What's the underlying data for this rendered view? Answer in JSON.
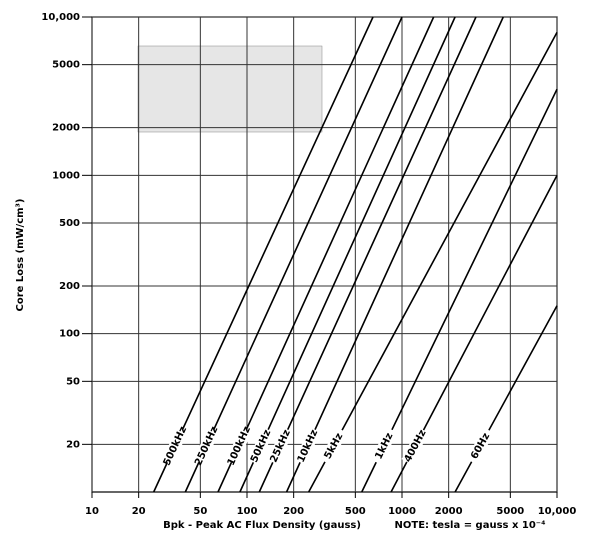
{
  "chart_data": {
    "type": "line",
    "x_label": "Bpk - Peak AC Flux Density (gauss)",
    "y_label": "Core Loss (mW/cm³)",
    "note": "NOTE: tesla = gauss x 10⁻⁴",
    "log_x": true,
    "log_y": true,
    "grid": true,
    "xlim": [
      10,
      10000
    ],
    "ylim": [
      10,
      10000
    ],
    "xticks": [
      10,
      20,
      50,
      100,
      200,
      500,
      1000,
      2000,
      5000,
      {
        "value": 10000,
        "label": "10,000"
      }
    ],
    "yticks": [
      20,
      50,
      100,
      200,
      500,
      1000,
      2000,
      5000,
      {
        "value": 10000,
        "label": "10,000"
      }
    ],
    "series": [
      {
        "name": "500kHz",
        "color": "#000000",
        "x": [
          25,
          650
        ],
        "values": [
          10,
          10000
        ]
      },
      {
        "name": "250kHz",
        "color": "#000000",
        "x": [
          40,
          1000
        ],
        "values": [
          10,
          10000
        ]
      },
      {
        "name": "100kHz",
        "color": "#000000",
        "x": [
          65,
          1600
        ],
        "values": [
          10,
          10000
        ]
      },
      {
        "name": "50kHz",
        "color": "#000000",
        "x": [
          90,
          2200
        ],
        "values": [
          10,
          10000
        ]
      },
      {
        "name": "25kHz",
        "color": "#000000",
        "x": [
          120,
          3000
        ],
        "values": [
          10,
          10000
        ]
      },
      {
        "name": "10kHz",
        "color": "#000000",
        "x": [
          180,
          4500
        ],
        "values": [
          10,
          10000
        ]
      },
      {
        "name": "5kHz",
        "color": "#000000",
        "x": [
          250,
          10000
        ],
        "values": [
          10,
          8000
        ]
      },
      {
        "name": "1kHz",
        "color": "#000000",
        "x": [
          550,
          10000
        ],
        "values": [
          10,
          3500
        ]
      },
      {
        "name": "400Hz",
        "color": "#000000",
        "x": [
          850,
          10000
        ],
        "values": [
          10,
          1000
        ]
      },
      {
        "name": "60Hz",
        "color": "#000000",
        "x": [
          2200,
          10000
        ],
        "values": [
          10,
          150
        ]
      }
    ]
  }
}
